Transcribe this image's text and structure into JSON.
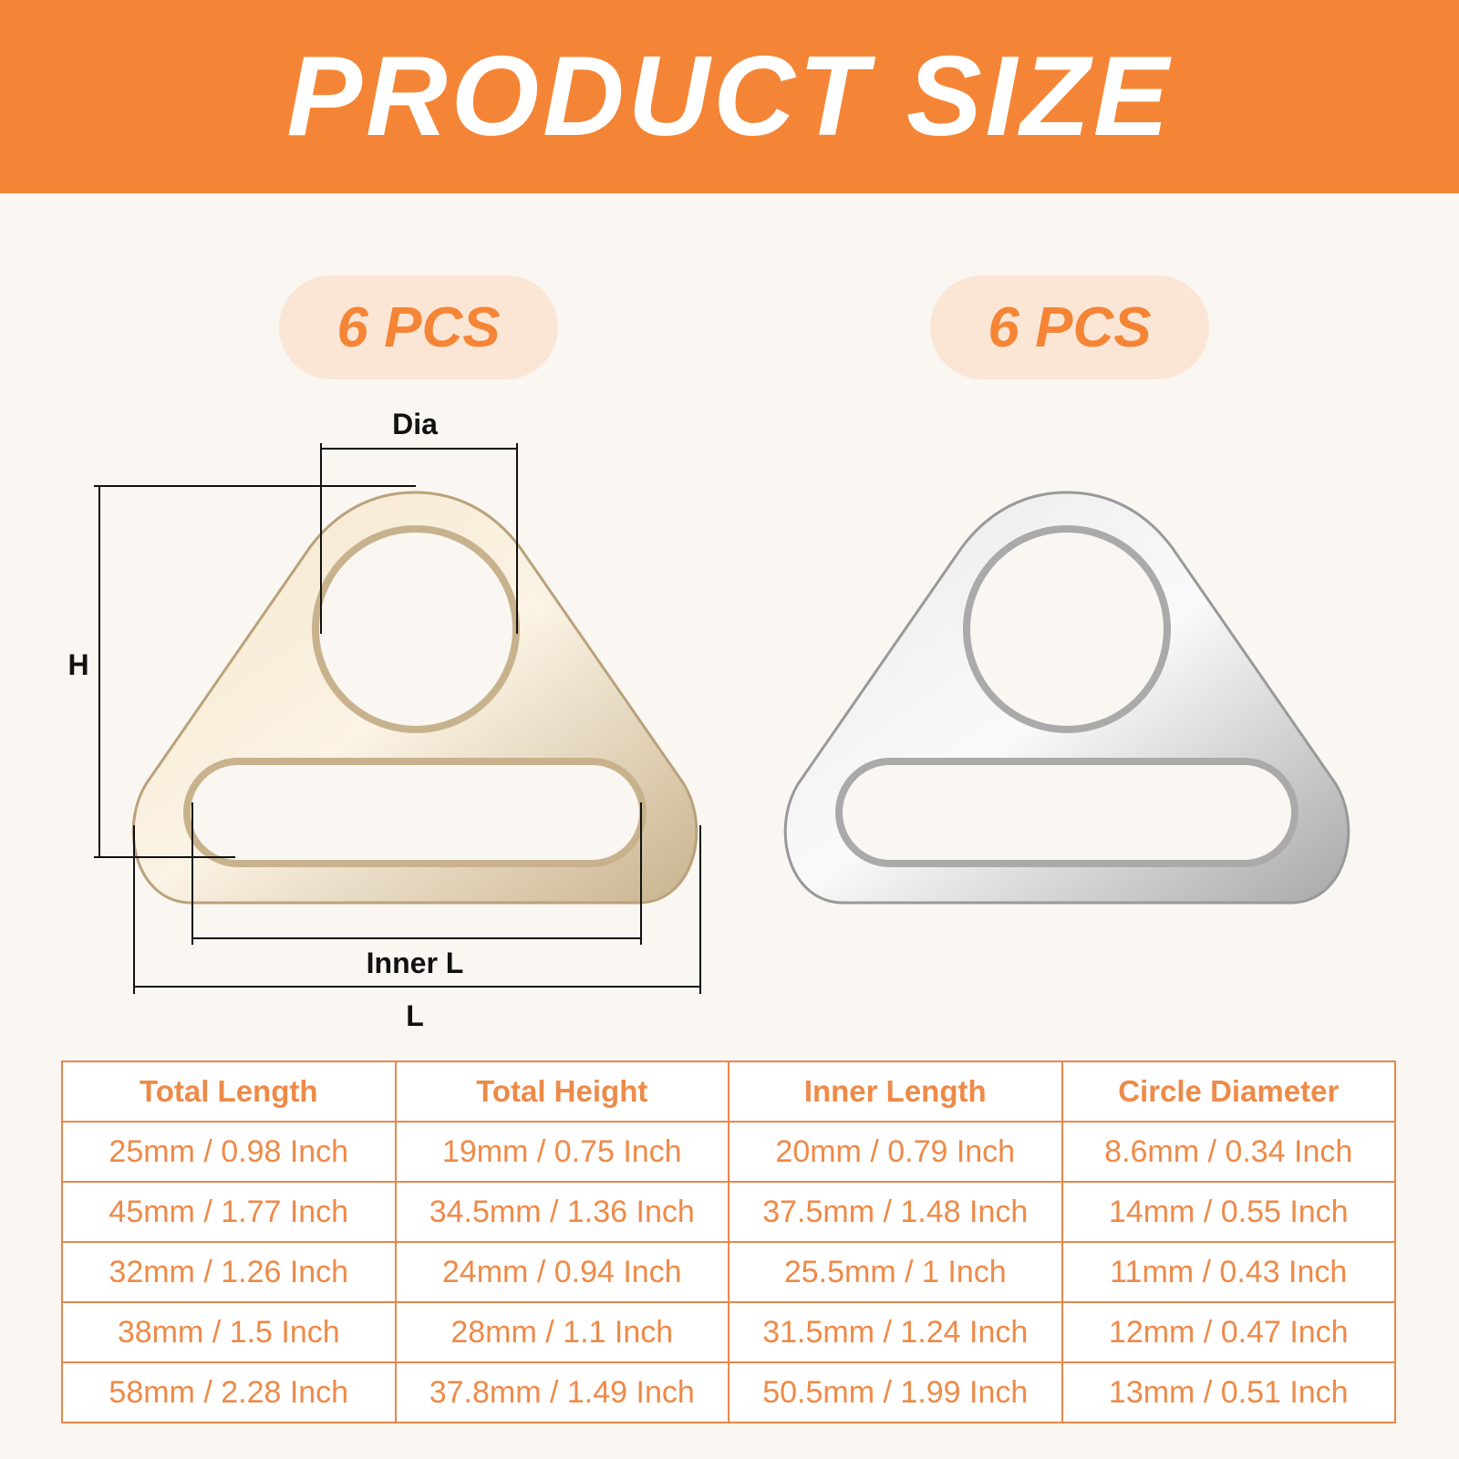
{
  "title": "PRODUCT SIZE",
  "badges": [
    "6 PCS",
    "6 PCS"
  ],
  "dimension_labels": {
    "dia": "Dia",
    "h": "H",
    "inner_l": "Inner L",
    "l": "L"
  },
  "colors": {
    "accent": "#f58536",
    "badge_bg": "#fbe6d6",
    "table_text": "#ee8a48",
    "gold": "#e8d6b8",
    "silver": "#d9d9d9"
  },
  "table": {
    "headers": [
      "Total Length",
      "Total Height",
      "Inner Length",
      "Circle Diameter"
    ],
    "rows": [
      [
        "25mm / 0.98 Inch",
        "19mm / 0.75 Inch",
        "20mm / 0.79 Inch",
        "8.6mm / 0.34 Inch"
      ],
      [
        "45mm / 1.77 Inch",
        "34.5mm / 1.36 Inch",
        "37.5mm / 1.48 Inch",
        "14mm / 0.55 Inch"
      ],
      [
        "32mm / 1.26 Inch",
        "24mm / 0.94 Inch",
        "25.5mm / 1 Inch",
        "11mm / 0.43 Inch"
      ],
      [
        "38mm / 1.5 Inch",
        "28mm / 1.1 Inch",
        "31.5mm / 1.24 Inch",
        "12mm / 0.47 Inch"
      ],
      [
        "58mm / 2.28 Inch",
        "37.8mm / 1.49 Inch",
        "50.5mm / 1.99 Inch",
        "13mm / 0.51 Inch"
      ]
    ]
  }
}
